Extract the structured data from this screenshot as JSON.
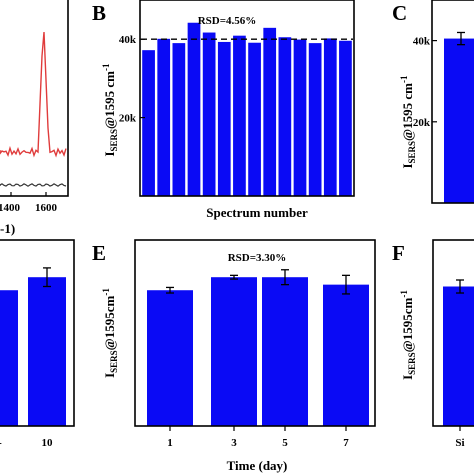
{
  "panels": {
    "a_partial": {
      "xticks": [
        "1400",
        "1600"
      ],
      "xlabel_fragment": "-1)",
      "line_colors": {
        "upper": "#e03c3c",
        "lower": "#333333"
      }
    },
    "b": {
      "letter": "B"
    },
    "c": {
      "letter": "C"
    },
    "d_partial": {
      "xticks": [
        "10"
      ]
    },
    "e": {
      "letter": "E"
    },
    "f": {
      "letter": "F"
    }
  },
  "chart_data": [
    {
      "panel": "B",
      "type": "bar",
      "title": "",
      "annotation": "RSD=4.56%",
      "xlabel": "Spectrum number",
      "ylabel": "ISERS@1595 cm-1",
      "ylabel_parts": {
        "main": "I",
        "sub": "SERS",
        "rest": "@1595 cm",
        "sup": "-1"
      },
      "ylim": [
        0,
        50000
      ],
      "yticks": [
        {
          "value": 20000,
          "label": "20k"
        },
        {
          "value": 40000,
          "label": "40k"
        }
      ],
      "values": [
        37200,
        40100,
        39000,
        44200,
        41700,
        39300,
        40900,
        39100,
        42900,
        40500,
        39900,
        39000,
        40200,
        39600
      ],
      "mean_line": 40000,
      "bar_color": "#0a0af5"
    },
    {
      "panel": "C",
      "type": "bar",
      "ylabel": "ISERS@1595 cm-1",
      "ylabel_parts": {
        "main": "I",
        "sub": "SERS",
        "rest": "@1595 cm",
        "sup": "-1"
      },
      "ylim": [
        0,
        50000
      ],
      "yticks": [
        {
          "value": 20000,
          "label": "20k"
        },
        {
          "value": 40000,
          "label": "40k"
        }
      ],
      "values": [
        40500
      ],
      "errors": [
        1500
      ],
      "bar_color": "#0a0af5"
    },
    {
      "panel": "D",
      "type": "bar",
      "categories": [
        "",
        "10"
      ],
      "values": [
        0.73,
        0.8
      ],
      "errors": [
        0,
        0.05
      ],
      "bar_color": "#0a0af5"
    },
    {
      "panel": "E",
      "type": "bar",
      "annotation": "RSD=3.30%",
      "xlabel": "Time (day)",
      "ylabel": "ISERS@1595cm-1",
      "ylabel_parts": {
        "main": "I",
        "sub": "SERS",
        "rest": "@1595cm",
        "sup": "-1"
      },
      "categories": [
        "1",
        "3",
        "5",
        "7"
      ],
      "values": [
        0.73,
        0.8,
        0.8,
        0.76
      ],
      "errors": [
        0.015,
        0.01,
        0.04,
        0.05
      ],
      "bar_color": "#0a0af5"
    },
    {
      "panel": "F",
      "type": "bar",
      "ylabel": "ISERS@1595cm-1",
      "ylabel_parts": {
        "main": "I",
        "sub": "SERS",
        "rest": "@1595cm",
        "sup": "-1"
      },
      "categories": [
        "Si"
      ],
      "values": [
        0.75
      ],
      "errors": [
        0.035
      ],
      "bar_color": "#0a0af5"
    }
  ]
}
